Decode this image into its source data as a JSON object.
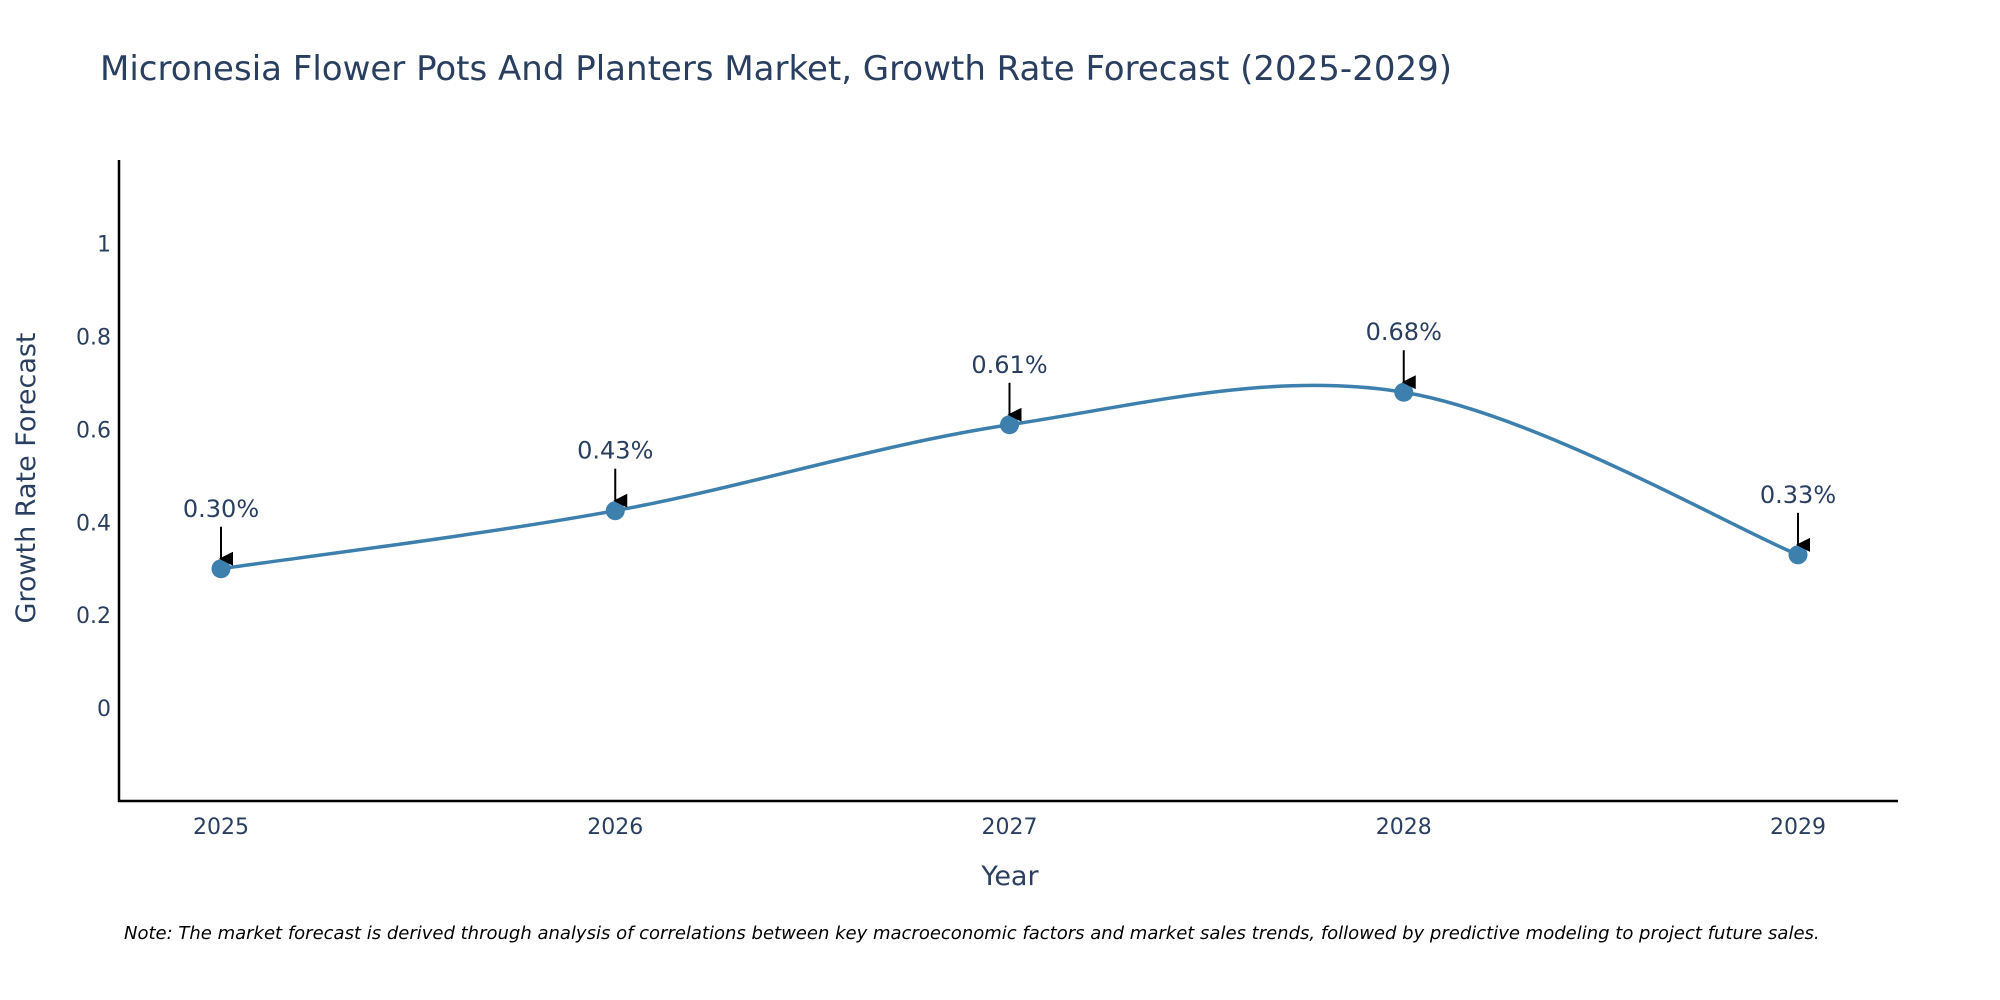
{
  "chart_data": {
    "type": "line",
    "title": "Micronesia Flower Pots And Planters Market, Growth Rate Forecast (2025-2029)",
    "xlabel": "Year",
    "ylabel": "Growth Rate Forecast",
    "categories": [
      "2025",
      "2026",
      "2027",
      "2028",
      "2029"
    ],
    "values": [
      0.3,
      0.425,
      0.61,
      0.68,
      0.33
    ],
    "labels": [
      "0.30%",
      "0.43%",
      "0.61%",
      "0.68%",
      "0.33%"
    ],
    "yticks": [
      0,
      0.2,
      0.4,
      0.6,
      0.8,
      1
    ],
    "ytick_labels": [
      "0",
      "0.2",
      "0.4",
      "0.6",
      "0.8",
      "1"
    ],
    "ylim": [
      -0.2,
      1.18
    ],
    "line_shape": "spline",
    "grid": false,
    "legend": false,
    "colors": {
      "line": "#3d7fad",
      "marker": "#3d7fad",
      "axis": "#000000",
      "arrow": "#000000"
    },
    "note": "Note: The market forecast is derived through analysis of correlations between key macroeconomic factors and market sales trends, followed by predictive modeling to project future sales."
  }
}
